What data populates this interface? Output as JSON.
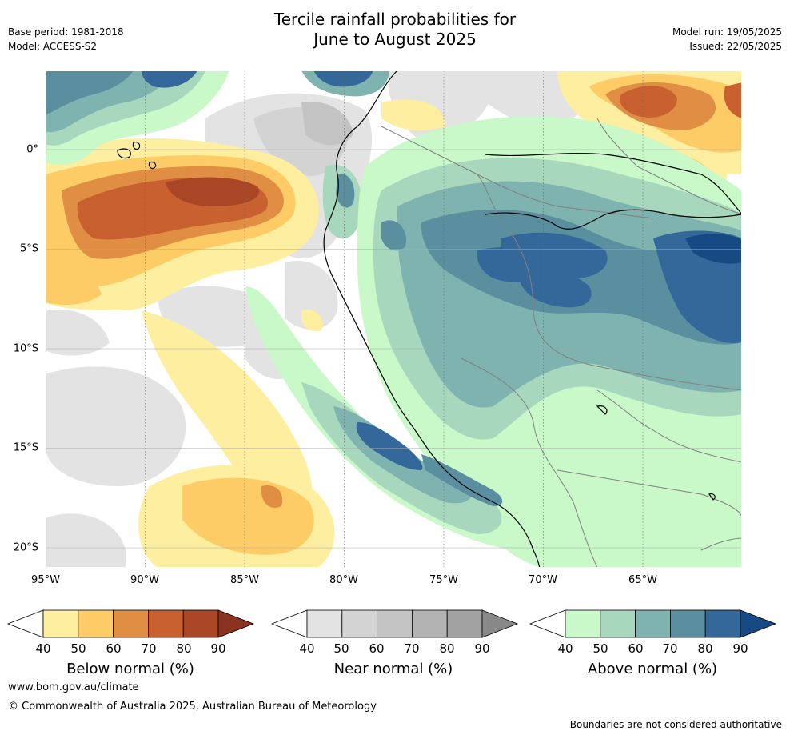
{
  "title_line1": "Tercile rainfall probabilities for",
  "title_line2": "June to August 2025",
  "base_period": "Base period: 1981-2018",
  "model": "Model: ACCESS-S2",
  "model_run": "Model run: 19/05/2025",
  "issued": "Issued: 22/05/2025",
  "map": {
    "lon_labels": [
      "95°W",
      "90°W",
      "85°W",
      "80°W",
      "75°W",
      "70°W",
      "65°W"
    ],
    "lat_labels": [
      "0°",
      "5°S",
      "10°S",
      "15°S",
      "20°S"
    ]
  },
  "colorbars": [
    {
      "title": "Below normal (%)",
      "ticks": [
        "40",
        "50",
        "60",
        "70",
        "80",
        "90"
      ],
      "colors": [
        "#fdeea0",
        "#fdcc66",
        "#df8e44",
        "#c8612f",
        "#a94626"
      ],
      "extend_color": "#8a3320"
    },
    {
      "title": "Near normal (%)",
      "ticks": [
        "40",
        "50",
        "60",
        "70",
        "80",
        "90"
      ],
      "colors": [
        "#e3e3e3",
        "#d3d3d3",
        "#c3c3c3",
        "#b3b3b3",
        "#a2a2a2"
      ],
      "extend_color": "#888888"
    },
    {
      "title": "Above normal (%)",
      "ticks": [
        "40",
        "50",
        "60",
        "70",
        "80",
        "90"
      ],
      "colors": [
        "#c9f8c9",
        "#a7d7bd",
        "#7fb3af",
        "#5a8fa0",
        "#35689a"
      ],
      "extend_color": "#174a82"
    }
  ],
  "url": "www.bom.gov.au/climate",
  "copyright": "© Commonwealth of Australia 2025, Australian Bureau of Meteorology",
  "disclaimer": "Boundaries are not considered authoritative"
}
